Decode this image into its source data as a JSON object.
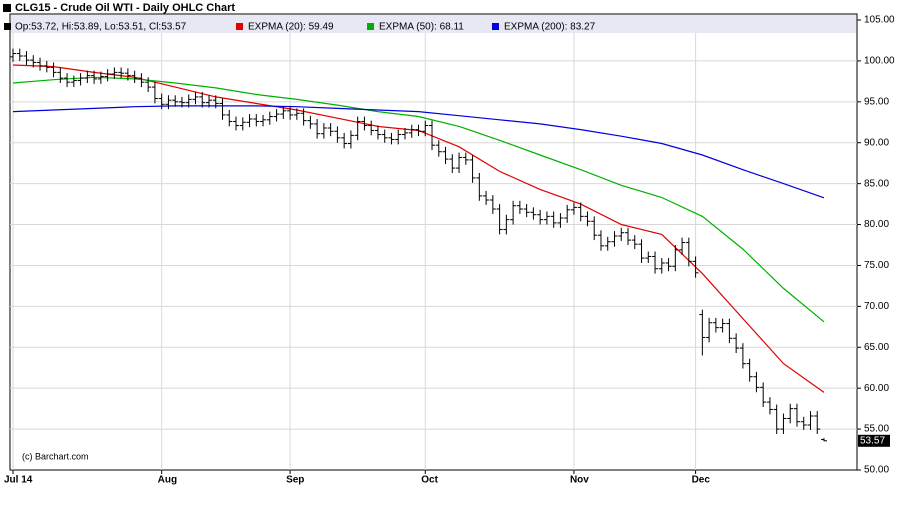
{
  "chart_data": {
    "type": "ohlc",
    "title": "CLG15 - Crude Oil WTI - Daily OHLC Chart",
    "ohlc_legend": "Op:53.72, Hi:53.89, Lo:53.51, Cl:53.57",
    "annotation": "(c) Barchart.com",
    "color": "#000000",
    "grid": true,
    "categories": [
      "Jul 14",
      null,
      null,
      null,
      null,
      null,
      null,
      null,
      null,
      null,
      null,
      null,
      null,
      null,
      null,
      null,
      null,
      null,
      null,
      null,
      null,
      null,
      "Aug",
      null,
      null,
      null,
      null,
      null,
      null,
      null,
      null,
      null,
      null,
      null,
      null,
      null,
      null,
      null,
      null,
      null,
      null,
      "Sep",
      null,
      null,
      null,
      null,
      null,
      null,
      null,
      null,
      null,
      null,
      null,
      null,
      null,
      null,
      null,
      null,
      null,
      null,
      null,
      "Oct",
      null,
      null,
      null,
      null,
      null,
      null,
      null,
      null,
      null,
      null,
      null,
      null,
      null,
      null,
      null,
      null,
      null,
      null,
      null,
      null,
      null,
      "Nov",
      null,
      null,
      null,
      null,
      null,
      null,
      null,
      null,
      null,
      null,
      null,
      null,
      null,
      null,
      null,
      null,
      null,
      "Dec",
      null,
      null,
      null,
      null,
      null,
      null,
      null,
      null,
      null,
      null,
      null,
      null,
      null,
      null,
      null,
      null,
      null,
      null,
      null
    ],
    "open": [
      100.5,
      100.9,
      100.6,
      100.1,
      99.8,
      99.4,
      99.2,
      98.6,
      97.9,
      97.4,
      97.6,
      97.9,
      98.2,
      97.8,
      98.1,
      98.4,
      98.6,
      98.5,
      98.2,
      97.9,
      97.4,
      96.8,
      95.4,
      94.7,
      95.2,
      95.0,
      94.9,
      95.3,
      95.6,
      94.9,
      95.2,
      94.8,
      93.4,
      92.6,
      92.1,
      92.5,
      92.9,
      92.6,
      92.8,
      93.2,
      93.5,
      93.9,
      93.4,
      93.6,
      92.7,
      92.3,
      91.1,
      91.8,
      91.4,
      90.6,
      89.9,
      90.9,
      92.6,
      92.1,
      91.5,
      91.0,
      90.6,
      90.4,
      91.0,
      91.2,
      91.6,
      91.4,
      92.1,
      89.7,
      88.9,
      88.0,
      86.9,
      88.2,
      87.9,
      85.7,
      83.5,
      83.0,
      81.9,
      79.4,
      80.6,
      82.3,
      81.9,
      81.5,
      81.2,
      80.6,
      81.0,
      80.2,
      80.8,
      81.8,
      82.1,
      81.0,
      80.4,
      78.7,
      77.4,
      77.9,
      78.6,
      79.0,
      78.1,
      77.6,
      75.9,
      76.1,
      74.6,
      75.3,
      74.9,
      76.9,
      77.8,
      75.5,
      69.0,
      66.2,
      68.0,
      67.4,
      67.9,
      66.1,
      64.9,
      63.0,
      61.4,
      60.1,
      58.3,
      57.4,
      55.0,
      56.3,
      57.5,
      55.9,
      55.5,
      56.6,
      53.72
    ],
    "high": [
      101.5,
      101.5,
      101.2,
      100.7,
      100.4,
      100.0,
      99.8,
      99.2,
      98.5,
      98.2,
      98.5,
      98.8,
      98.8,
      98.7,
      99.0,
      99.2,
      99.2,
      99.1,
      98.8,
      98.5,
      98.0,
      97.4,
      96.0,
      95.8,
      95.8,
      95.6,
      95.9,
      96.2,
      96.2,
      95.8,
      95.8,
      95.4,
      94.0,
      93.2,
      93.1,
      93.5,
      93.5,
      93.4,
      93.8,
      94.1,
      94.5,
      94.5,
      94.2,
      94.2,
      93.3,
      92.9,
      92.4,
      92.4,
      92.0,
      91.2,
      91.5,
      93.2,
      93.2,
      92.7,
      92.1,
      91.6,
      91.2,
      91.6,
      91.8,
      92.2,
      92.2,
      92.7,
      92.7,
      90.3,
      89.5,
      88.6,
      88.8,
      88.8,
      88.5,
      86.3,
      84.1,
      83.6,
      82.5,
      81.2,
      82.9,
      82.9,
      82.5,
      82.1,
      81.8,
      81.6,
      81.6,
      81.4,
      82.4,
      82.7,
      82.7,
      81.6,
      81.0,
      79.3,
      78.5,
      79.2,
      79.6,
      79.6,
      78.7,
      78.2,
      76.7,
      76.7,
      75.9,
      75.9,
      77.5,
      78.4,
      78.4,
      76.1,
      69.6,
      68.6,
      68.6,
      68.5,
      68.5,
      66.7,
      65.5,
      63.6,
      62.0,
      60.7,
      58.9,
      58.0,
      56.9,
      58.1,
      58.1,
      56.5,
      57.2,
      57.2,
      53.89
    ],
    "low": [
      99.9,
      100.0,
      99.5,
      99.2,
      98.8,
      98.6,
      98.0,
      97.3,
      96.8,
      96.8,
      97.0,
      97.3,
      97.2,
      97.2,
      97.5,
      97.8,
      97.9,
      97.6,
      97.3,
      96.8,
      96.2,
      94.8,
      94.1,
      94.1,
      94.4,
      94.3,
      94.3,
      94.7,
      94.3,
      94.3,
      94.2,
      92.8,
      92.0,
      91.5,
      91.5,
      91.9,
      92.0,
      92.0,
      92.2,
      92.6,
      92.9,
      92.8,
      92.8,
      92.1,
      91.7,
      90.5,
      90.5,
      90.8,
      90.0,
      89.3,
      89.3,
      90.3,
      91.5,
      90.9,
      90.4,
      90.0,
      89.8,
      89.8,
      90.4,
      90.6,
      90.8,
      90.8,
      89.1,
      88.3,
      87.4,
      86.3,
      86.3,
      87.3,
      85.1,
      82.9,
      82.4,
      81.3,
      78.8,
      78.8,
      80.0,
      81.3,
      80.9,
      80.6,
      80.0,
      80.0,
      79.6,
      79.6,
      80.2,
      81.2,
      80.4,
      79.8,
      78.1,
      76.8,
      76.8,
      77.3,
      78.0,
      77.5,
      77.0,
      75.3,
      75.3,
      74.0,
      74.0,
      74.3,
      74.3,
      76.3,
      74.9,
      73.5,
      64.0,
      65.6,
      66.8,
      66.8,
      65.5,
      64.3,
      62.4,
      60.8,
      59.5,
      57.7,
      56.8,
      54.4,
      54.4,
      55.7,
      55.3,
      54.9,
      54.9,
      54.4,
      53.51
    ],
    "close": [
      100.9,
      100.6,
      100.1,
      99.8,
      99.4,
      99.2,
      98.6,
      97.9,
      97.4,
      97.6,
      97.9,
      98.2,
      97.8,
      98.1,
      98.4,
      98.6,
      98.5,
      98.2,
      97.9,
      97.4,
      96.8,
      95.4,
      94.7,
      95.2,
      95.0,
      94.9,
      95.3,
      95.6,
      94.9,
      95.2,
      94.8,
      93.4,
      92.6,
      92.1,
      92.5,
      92.9,
      92.6,
      92.8,
      93.2,
      93.5,
      93.9,
      93.4,
      93.6,
      92.7,
      92.3,
      91.1,
      91.8,
      91.4,
      90.6,
      89.9,
      90.9,
      92.6,
      92.1,
      91.5,
      91.0,
      90.6,
      90.4,
      91.0,
      91.2,
      91.6,
      91.4,
      92.1,
      89.7,
      88.9,
      88.0,
      86.9,
      88.2,
      87.9,
      85.7,
      83.5,
      83.0,
      81.9,
      79.4,
      80.6,
      82.3,
      81.9,
      81.5,
      81.2,
      80.6,
      81.0,
      80.2,
      80.8,
      81.8,
      82.1,
      81.0,
      80.4,
      78.7,
      77.4,
      77.9,
      78.6,
      79.0,
      78.1,
      77.6,
      75.9,
      76.1,
      74.6,
      75.3,
      74.9,
      76.9,
      77.8,
      75.5,
      74.1,
      66.2,
      68.0,
      67.4,
      67.9,
      66.1,
      64.9,
      63.0,
      61.4,
      60.1,
      58.3,
      57.4,
      55.0,
      56.3,
      57.5,
      55.9,
      55.5,
      56.6,
      55.0,
      53.57
    ],
    "series": [
      {
        "name": "EXPMA (20): 59.49",
        "color": "#e00000",
        "x": [
          0,
          6,
          12,
          18,
          24,
          30,
          36,
          42,
          48,
          54,
          60,
          66,
          72,
          78,
          84,
          90,
          96,
          102,
          108,
          114,
          120
        ],
        "values": [
          99.5,
          99.3,
          98.6,
          98.0,
          96.8,
          95.6,
          94.8,
          94.0,
          93.0,
          92.0,
          91.5,
          89.5,
          86.5,
          84.3,
          82.5,
          80.0,
          78.8,
          74.0,
          68.5,
          63.0,
          59.49
        ]
      },
      {
        "name": "EXPMA (50): 68.11",
        "color": "#00b000",
        "x": [
          0,
          6,
          12,
          18,
          24,
          30,
          36,
          42,
          48,
          54,
          60,
          66,
          72,
          78,
          84,
          90,
          96,
          102,
          108,
          114,
          120
        ],
        "values": [
          97.3,
          97.7,
          98.0,
          97.8,
          97.3,
          96.7,
          95.9,
          95.3,
          94.6,
          93.8,
          93.2,
          92.0,
          90.3,
          88.5,
          86.7,
          84.8,
          83.3,
          81.0,
          77.0,
          72.2,
          68.11
        ]
      },
      {
        "name": "EXPMA (200): 83.27",
        "color": "#0000e0",
        "x": [
          0,
          6,
          12,
          18,
          24,
          30,
          36,
          42,
          48,
          54,
          60,
          66,
          72,
          78,
          84,
          90,
          96,
          102,
          108,
          114,
          120
        ],
        "values": [
          93.8,
          94.0,
          94.2,
          94.4,
          94.5,
          94.5,
          94.5,
          94.4,
          94.2,
          94.0,
          93.8,
          93.3,
          92.8,
          92.3,
          91.6,
          90.8,
          89.9,
          88.5,
          86.7,
          85.0,
          83.27
        ]
      }
    ],
    "ylim": [
      50,
      105
    ],
    "yticks": [
      {
        "value": 50,
        "label": "50.00"
      },
      {
        "value": 55,
        "label": "55.00"
      },
      {
        "value": 60,
        "label": "60.00"
      },
      {
        "value": 65,
        "label": "65.00"
      },
      {
        "value": 70,
        "label": "70.00"
      },
      {
        "value": 75,
        "label": "75.00"
      },
      {
        "value": 80,
        "label": "80.00"
      },
      {
        "value": 85,
        "label": "85.00"
      },
      {
        "value": 90,
        "label": "90.00"
      },
      {
        "value": 95,
        "label": "95.00"
      },
      {
        "value": 100,
        "label": "100.00"
      },
      {
        "value": 105,
        "label": "105.00"
      }
    ]
  }
}
